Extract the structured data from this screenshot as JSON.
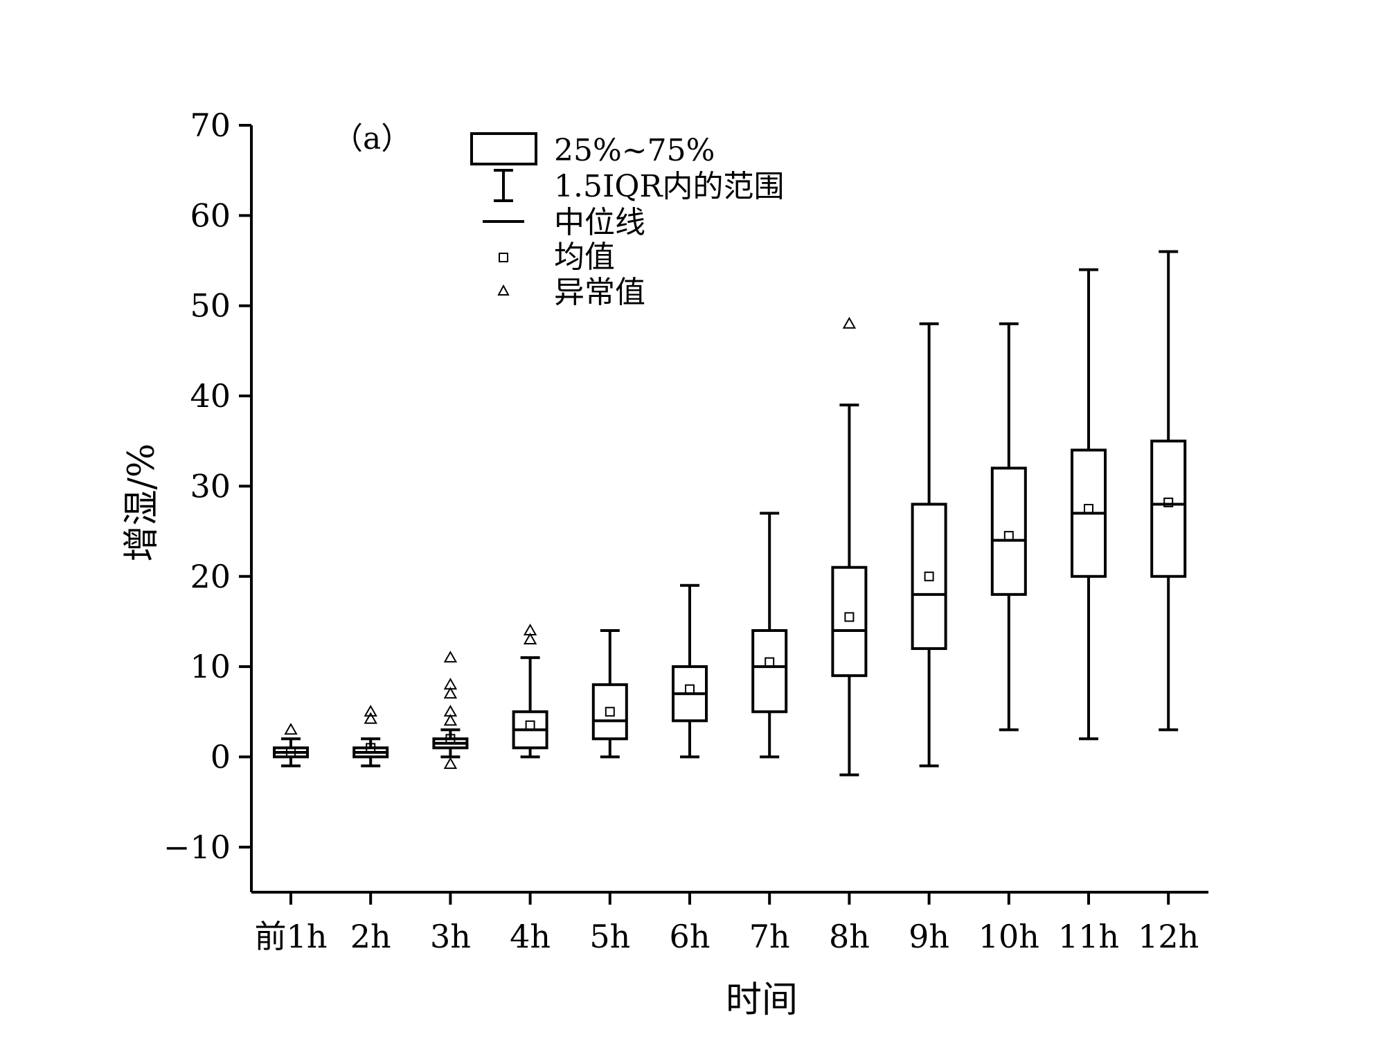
{
  "chart_data": {
    "type": "box",
    "panel_label": "（a）",
    "xlabel": "时间",
    "ylabel": "增湿/%",
    "ylim": [
      -15,
      70
    ],
    "yticks": [
      -10,
      0,
      10,
      20,
      30,
      40,
      50,
      60,
      70
    ],
    "ytick_labels": [
      "−10",
      "0",
      "10",
      "20",
      "30",
      "40",
      "50",
      "60",
      "70"
    ],
    "categories": [
      "前1h",
      "2h",
      "3h",
      "4h",
      "5h",
      "6h",
      "7h",
      "8h",
      "9h",
      "10h",
      "11h",
      "12h"
    ],
    "boxes": [
      {
        "whisker_low": -1,
        "q1": 0,
        "median": 0.5,
        "q3": 1,
        "whisker_high": 2,
        "mean": 0.5,
        "outliers": [
          3
        ]
      },
      {
        "whisker_low": -1,
        "q1": 0,
        "median": 0.5,
        "q3": 1,
        "whisker_high": 2,
        "mean": 1,
        "outliers": [
          4.2,
          5
        ]
      },
      {
        "whisker_low": 0,
        "q1": 1,
        "median": 1.5,
        "q3": 2,
        "whisker_high": 3,
        "mean": 2,
        "outliers": [
          -0.8,
          4,
          5,
          7,
          8,
          11
        ]
      },
      {
        "whisker_low": 0,
        "q1": 1,
        "median": 3,
        "q3": 5,
        "whisker_high": 11,
        "mean": 3.5,
        "outliers": [
          13,
          14
        ]
      },
      {
        "whisker_low": 0,
        "q1": 2,
        "median": 4,
        "q3": 8,
        "whisker_high": 14,
        "mean": 5,
        "outliers": []
      },
      {
        "whisker_low": 0,
        "q1": 4,
        "median": 7,
        "q3": 10,
        "whisker_high": 19,
        "mean": 7.5,
        "outliers": []
      },
      {
        "whisker_low": 0,
        "q1": 5,
        "median": 10,
        "q3": 14,
        "whisker_high": 27,
        "mean": 10.5,
        "outliers": []
      },
      {
        "whisker_low": -2,
        "q1": 9,
        "median": 14,
        "q3": 21,
        "whisker_high": 39,
        "mean": 15.5,
        "outliers": [
          48
        ]
      },
      {
        "whisker_low": -1,
        "q1": 12,
        "median": 18,
        "q3": 28,
        "whisker_high": 48,
        "mean": 20,
        "outliers": []
      },
      {
        "whisker_low": 3,
        "q1": 18,
        "median": 24,
        "q3": 32,
        "whisker_high": 48,
        "mean": 24.5,
        "outliers": []
      },
      {
        "whisker_low": 2,
        "q1": 20,
        "median": 27,
        "q3": 34,
        "whisker_high": 54,
        "mean": 27.5,
        "outliers": []
      },
      {
        "whisker_low": 3,
        "q1": 20,
        "median": 28,
        "q3": 35,
        "whisker_high": 56,
        "mean": 28.2,
        "outliers": []
      }
    ],
    "legend": {
      "position": "top-center",
      "box": "25%~75%",
      "whisker": "1.5IQR内的范围",
      "median": "中位线",
      "mean": "均值",
      "outlier": "异常值"
    },
    "grid": false,
    "colors": {
      "stroke": "#000000",
      "background": "#ffffff"
    }
  }
}
